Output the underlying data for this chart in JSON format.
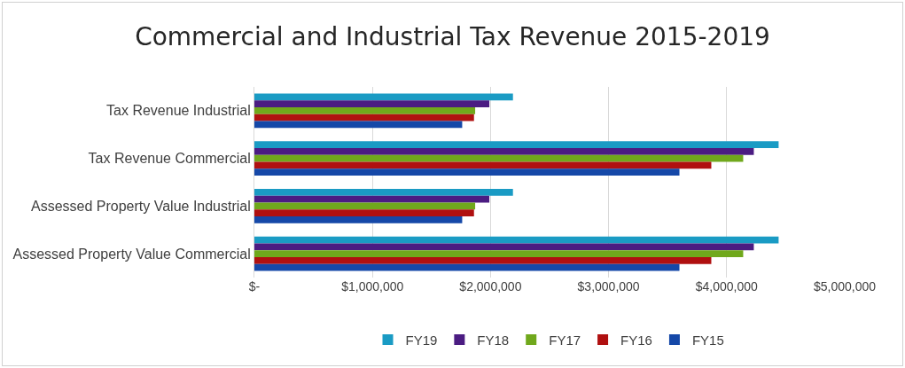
{
  "chart_data": {
    "type": "bar",
    "orientation": "horizontal",
    "title": "Commercial and Industrial Tax Revenue 2015-2019",
    "categories": [
      "Tax Revenue Industrial",
      "Tax Revenue Commercial",
      "Assessed Property Value Industrial",
      "Assessed Property Value Commercial"
    ],
    "series": [
      {
        "name": "FY19",
        "color": "#1a9bc4",
        "values": [
          2190000,
          4440000,
          2190000,
          4440000
        ]
      },
      {
        "name": "FY18",
        "color": "#4b1c82",
        "values": [
          1990000,
          4230000,
          1990000,
          4230000
        ]
      },
      {
        "name": "FY17",
        "color": "#70a81c",
        "values": [
          1870000,
          4140000,
          1870000,
          4140000
        ]
      },
      {
        "name": "FY16",
        "color": "#b01010",
        "values": [
          1860000,
          3870000,
          1860000,
          3870000
        ]
      },
      {
        "name": "FY15",
        "color": "#1548a8",
        "values": [
          1760000,
          3600000,
          1760000,
          3600000
        ]
      }
    ],
    "xlim": [
      0,
      5000000
    ],
    "xticks": [
      {
        "value": 0,
        "label": "$-"
      },
      {
        "value": 1000000,
        "label": "$1,000,000"
      },
      {
        "value": 2000000,
        "label": "$2,000,000"
      },
      {
        "value": 3000000,
        "label": "$3,000,000"
      },
      {
        "value": 4000000,
        "label": "$4,000,000"
      },
      {
        "value": 5000000,
        "label": "$5,000,000"
      }
    ],
    "grid": "x",
    "legend": "bottom"
  }
}
